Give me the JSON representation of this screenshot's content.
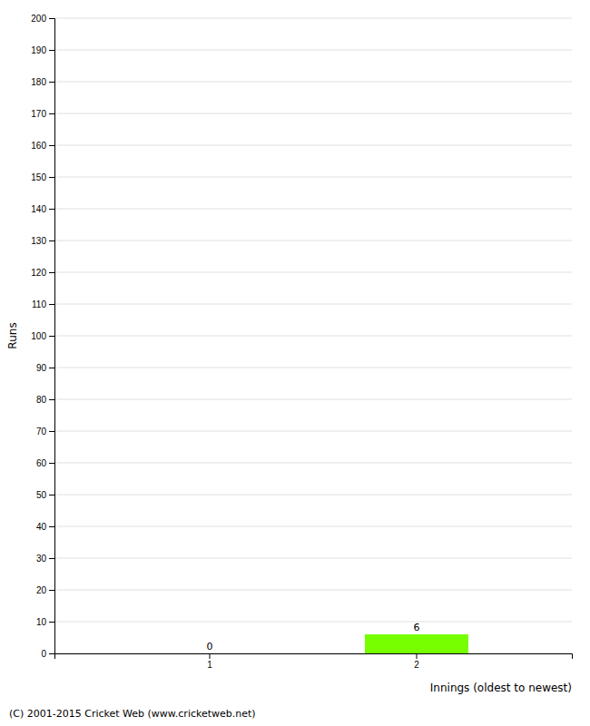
{
  "chart_data": {
    "type": "bar",
    "xlabel": "Innings (oldest to newest)",
    "ylabel": "Runs",
    "categories": [
      1,
      2
    ],
    "values": [
      0,
      6
    ],
    "color": "#77ff00",
    "data_labels": true,
    "ylim": [
      0,
      200
    ],
    "yticks": [
      0,
      10,
      20,
      30,
      40,
      50,
      60,
      70,
      80,
      90,
      100,
      110,
      120,
      130,
      140,
      150,
      160,
      170,
      180,
      190,
      200
    ],
    "grid": true,
    "annotations": [
      "(C) 2001-2015 Cricket Web (www.cricketweb.net)"
    ]
  }
}
